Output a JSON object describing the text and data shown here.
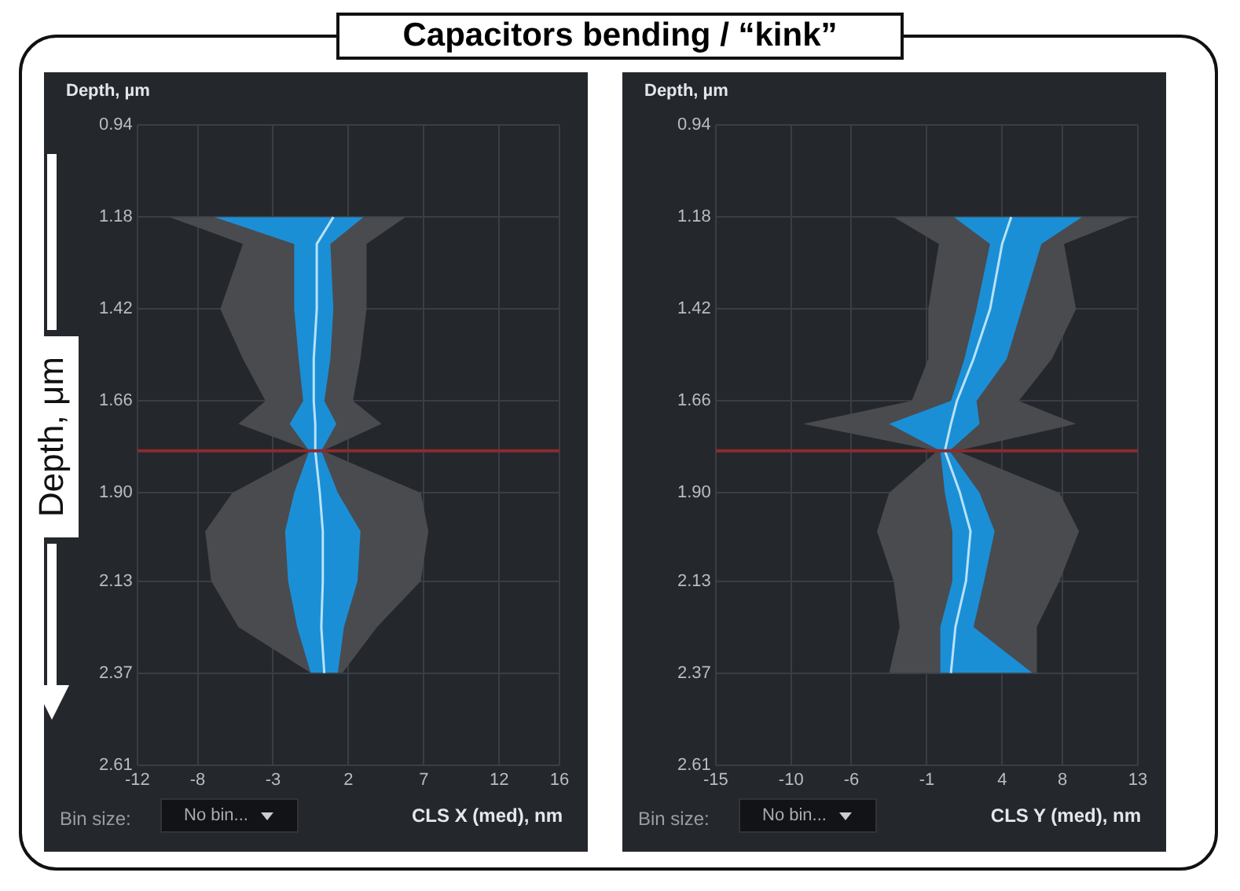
{
  "chart_data": [
    {
      "type": "line",
      "title": "Capacitors bending / “kink”",
      "orientation": "horizontal",
      "ylabel": "Depth, µm",
      "xlabel": "CLS X (med), nm",
      "x": [
        1.18,
        1.25,
        1.42,
        1.55,
        1.66,
        1.72,
        1.79,
        1.9,
        2.0,
        2.13,
        2.25,
        2.37
      ],
      "xlim": [
        -12,
        16
      ],
      "xticks": [
        -12,
        -8,
        -3,
        2,
        7,
        12,
        16
      ],
      "ylim": [
        2.61,
        0.94
      ],
      "yticks": [
        0.94,
        1.18,
        1.42,
        1.66,
        {
          "value": 1.9,
          "label": "1.90"
        },
        2.13,
        2.37,
        2.61
      ],
      "grid": true,
      "legend": false,
      "marker": "none",
      "line_style": "solid",
      "ref_lines": [
        {
          "axis": "y",
          "value": 1.79,
          "color": "#8b2b2e"
        }
      ],
      "annotations": [
        "Bin size:",
        "No bin...",
        "Depth, μm"
      ],
      "series": [
        {
          "type": "area",
          "color": "#4a4b4f",
          "values": [
            null,
            null,
            null,
            null,
            null,
            null,
            null,
            null,
            null,
            null,
            null,
            null
          ],
          "lower": [
            -9.9,
            -5.0,
            -6.5,
            -5.0,
            -3.5,
            -5.3,
            -0.5,
            -5.7,
            -7.5,
            -7.1,
            -5.3,
            -0.5
          ],
          "upper": [
            5.8,
            3.2,
            3.2,
            2.8,
            2.3,
            4.2,
            0.3,
            6.8,
            7.3,
            6.8,
            3.9,
            1.6
          ]
        },
        {
          "type": "area",
          "color": "#1b8fd6",
          "values": [
            null,
            null,
            null,
            null,
            null,
            null,
            null,
            null,
            null,
            null,
            null,
            null
          ],
          "lower": [
            -6.9,
            -1.6,
            -1.6,
            -1.3,
            -1.0,
            -1.9,
            -0.6,
            -1.6,
            -2.2,
            -2.0,
            -1.4,
            -0.5
          ],
          "upper": [
            3.0,
            0.8,
            1.0,
            0.8,
            0.4,
            1.2,
            0.2,
            1.3,
            2.8,
            2.6,
            1.7,
            1.3
          ]
        },
        {
          "type": "line",
          "color": "#b8e2f8",
          "values": [
            1.0,
            -0.1,
            -0.1,
            -0.3,
            -0.3,
            -0.2,
            -0.2,
            0.1,
            0.3,
            0.3,
            0.2,
            0.4
          ]
        }
      ]
    },
    {
      "type": "line",
      "orientation": "horizontal",
      "ylabel": "Depth, µm",
      "xlabel": "CLS Y (med), nm",
      "x": [
        1.18,
        1.25,
        1.42,
        1.55,
        1.66,
        1.72,
        1.79,
        1.9,
        2.0,
        2.13,
        2.25,
        2.37
      ],
      "xlim": [
        -15,
        13
      ],
      "xticks": [
        -15,
        -10,
        -6,
        -1,
        4,
        8,
        13
      ],
      "ylim": [
        2.61,
        0.94
      ],
      "yticks": [
        0.94,
        1.18,
        1.42,
        1.66,
        {
          "value": 1.9,
          "label": "1.90"
        },
        2.13,
        2.37,
        2.61
      ],
      "grid": true,
      "legend": false,
      "marker": "none",
      "line_style": "solid",
      "ref_lines": [
        {
          "axis": "y",
          "value": 1.79,
          "color": "#8b2b2e"
        }
      ],
      "annotations": [
        "Bin size:",
        "No bin..."
      ],
      "series": [
        {
          "type": "area",
          "color": "#4a4b4f",
          "values": [
            null,
            null,
            null,
            null,
            null,
            null,
            null,
            null,
            null,
            null,
            null,
            null
          ],
          "lower": [
            -3.2,
            -0.2,
            -0.9,
            -0.9,
            -2.0,
            -9.2,
            -0.3,
            -3.5,
            -4.3,
            -3.2,
            -2.8,
            -3.5
          ],
          "upper": [
            12.6,
            8.1,
            8.9,
            7.3,
            5.1,
            8.9,
            1.0,
            7.8,
            9.1,
            7.8,
            6.3,
            6.3
          ]
        },
        {
          "type": "area",
          "color": "#1b8fd6",
          "values": [
            null,
            null,
            null,
            null,
            null,
            null,
            null,
            null,
            null,
            null,
            null,
            null
          ],
          "lower": [
            0.8,
            3.2,
            2.3,
            1.5,
            0.6,
            -3.5,
            -0.1,
            0.2,
            0.7,
            0.7,
            -0.1,
            -0.1
          ],
          "upper": [
            9.3,
            6.6,
            5.3,
            4.3,
            2.3,
            2.5,
            0.5,
            2.5,
            3.5,
            2.8,
            2.1,
            6.0
          ]
        },
        {
          "type": "line",
          "color": "#b8e2f8",
          "values": [
            4.6,
            4.0,
            3.2,
            2.1,
            1.0,
            0.6,
            0.2,
            1.2,
            1.9,
            1.6,
            0.9,
            0.6
          ]
        }
      ]
    }
  ]
}
